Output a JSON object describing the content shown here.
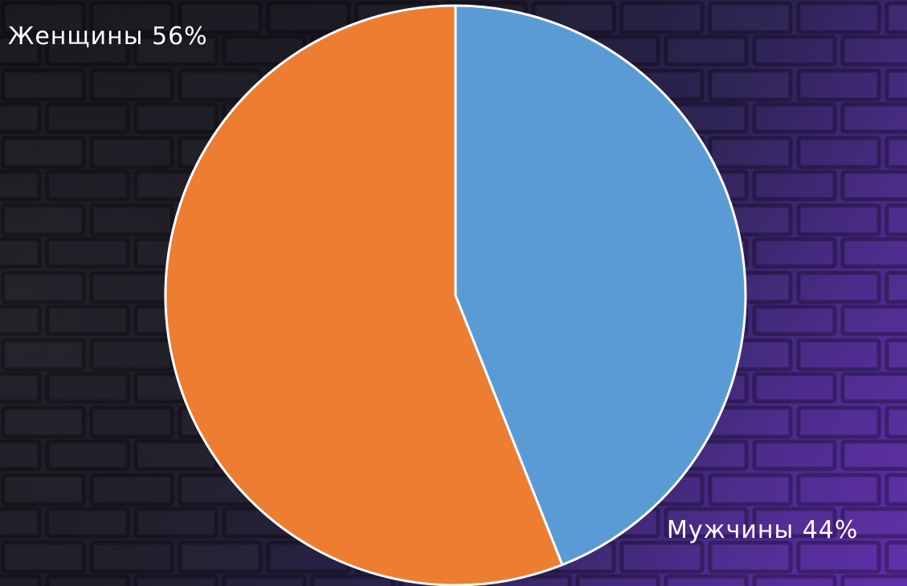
{
  "chart_data": {
    "type": "pie",
    "title": "",
    "slices": [
      {
        "name": "Мужчины",
        "value": 44,
        "label": "Мужчины 44%",
        "color": "#5b9bd5"
      },
      {
        "name": "Женщины",
        "value": 56,
        "label": "Женщины 56%",
        "color": "#ed7d31"
      }
    ],
    "start_angle": "12 o'clock",
    "direction": "clockwise",
    "slice_border_color": "#ffffff"
  }
}
